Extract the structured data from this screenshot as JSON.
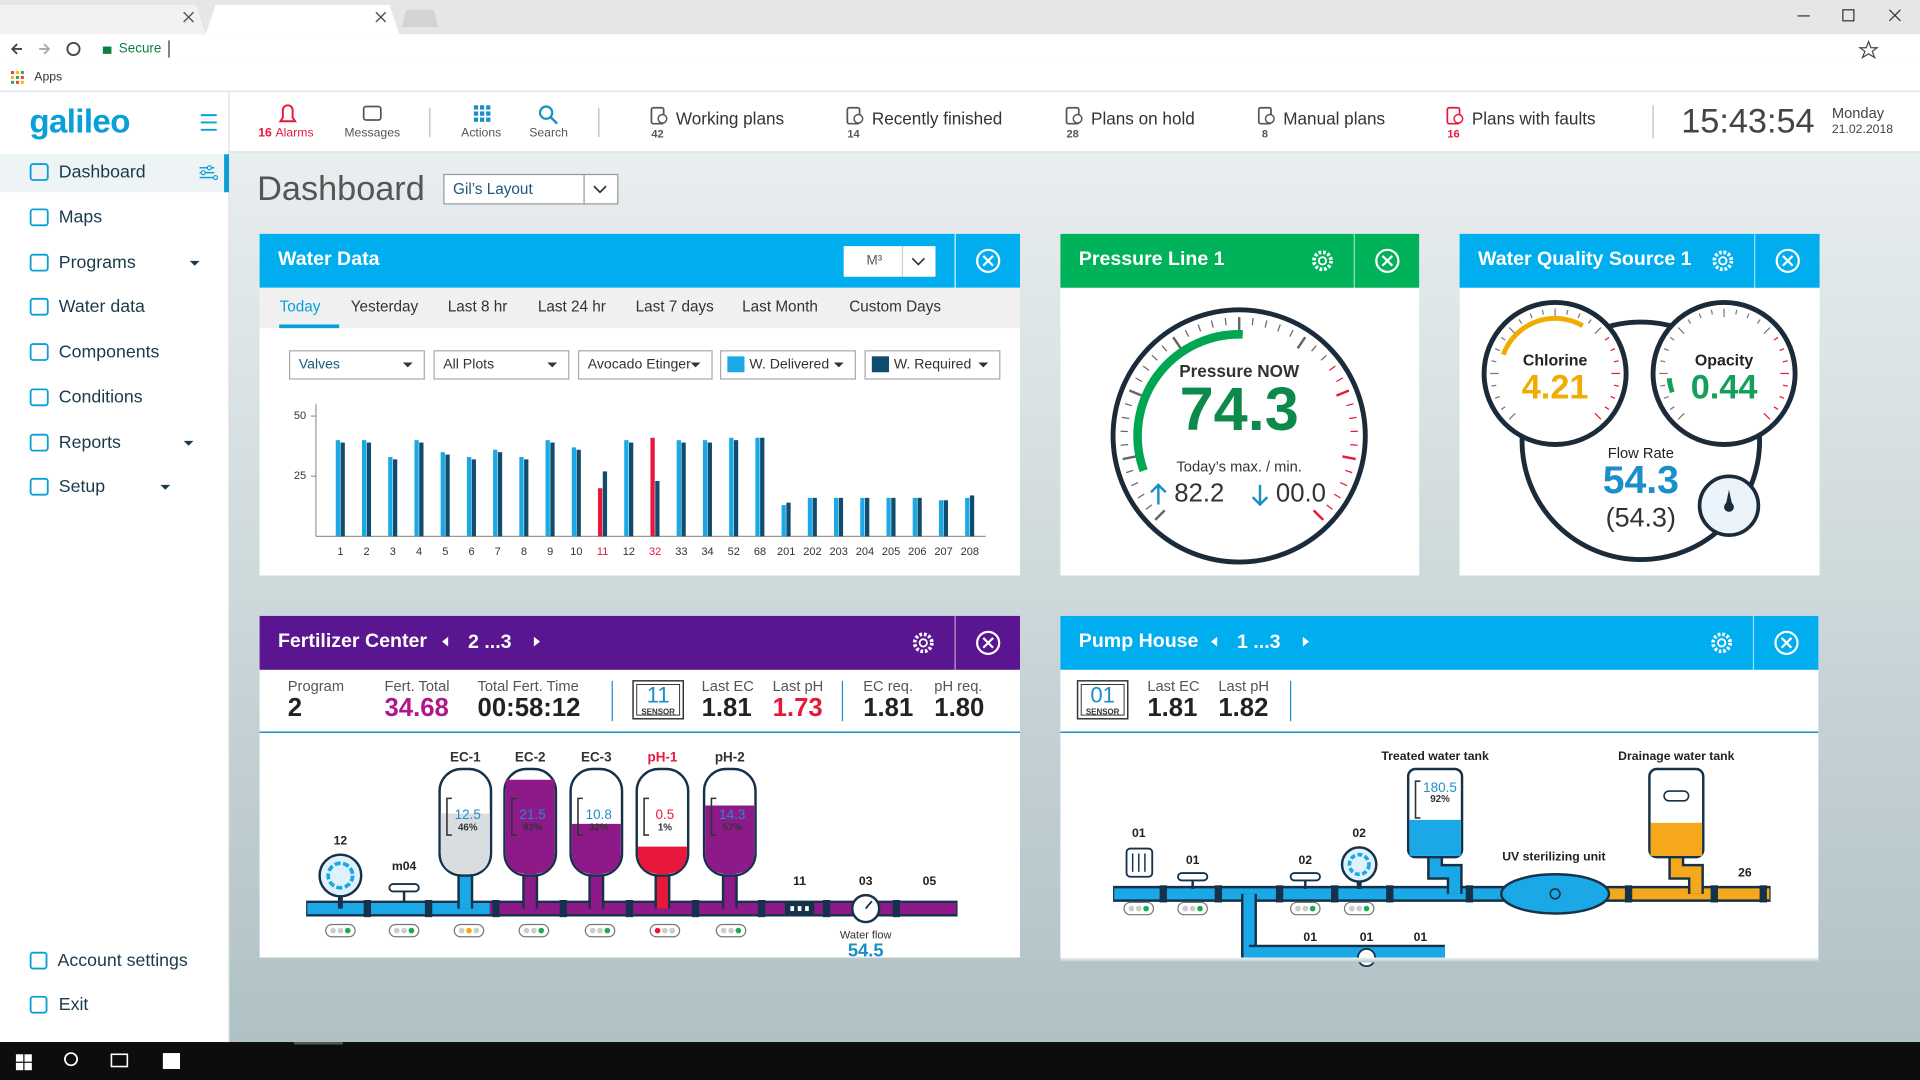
{
  "browser": {
    "secure": "Secure",
    "apps": "Apps"
  },
  "header": {
    "logo": "galileo",
    "alarms": {
      "count": "16",
      "label": "Alarms"
    },
    "messages": "Messages",
    "actions": "Actions",
    "search": "Search",
    "plans": [
      {
        "label": "Working plans",
        "count": "42"
      },
      {
        "label": "Recently finished",
        "count": "14"
      },
      {
        "label": "Plans on hold",
        "count": "28"
      },
      {
        "label": "Manual plans",
        "count": "8"
      },
      {
        "label": "Plans with faults",
        "count": "16"
      }
    ],
    "time": "15:43:54",
    "day": "Monday",
    "date": "21.02.2018"
  },
  "sidebar": {
    "items": [
      "Dashboard",
      "Maps",
      "Programs",
      "Water data",
      "Components",
      "Conditions",
      "Reports",
      "Setup"
    ],
    "footer": [
      "Account settings",
      "Exit"
    ]
  },
  "page": {
    "title": "Dashboard",
    "layout": "Gil’s Layout"
  },
  "water_data": {
    "title": "Water Data",
    "unit": "M³",
    "tabs": [
      "Today",
      "Yesterday",
      "Last 8 hr",
      "Last 24 hr",
      "Last 7 days",
      "Last Month",
      "Custom Days"
    ],
    "filters": [
      "Valves",
      "All Plots",
      "Avocado Etinger"
    ]
  },
  "chart_data": {
    "type": "bar",
    "categories": [
      "1",
      "2",
      "3",
      "4",
      "5",
      "6",
      "7",
      "8",
      "9",
      "10",
      "11",
      "12",
      "32",
      "33",
      "34",
      "52",
      "68",
      "201",
      "202",
      "203",
      "204",
      "205",
      "206",
      "207",
      "208"
    ],
    "series": [
      {
        "name": "W. Delivered",
        "color": "#1aa9e6",
        "values": [
          40,
          40,
          33,
          40,
          35,
          33,
          36,
          33,
          40,
          37,
          20,
          40,
          41,
          40,
          40,
          41,
          41,
          13,
          16,
          16,
          16,
          16,
          16,
          15,
          16
        ]
      },
      {
        "name": "W. Required",
        "color": "#0f4c6e",
        "values": [
          39,
          39,
          32,
          39,
          34,
          32,
          35,
          32,
          39,
          36,
          27,
          39,
          23,
          39,
          39,
          40,
          41,
          14,
          16,
          16,
          16,
          16,
          16,
          15,
          17
        ]
      }
    ],
    "alert_color": "#e8173c",
    "alert_points": [
      10,
      12
    ],
    "ylim": [
      0,
      55
    ],
    "yticks": [
      25,
      50
    ]
  },
  "pressure": {
    "title": "Pressure Line 1",
    "now_label": "Pressure NOW",
    "now": "74.3",
    "range_label": "Today’s max. / min.",
    "max": "82.2",
    "min": "00.0"
  },
  "water_quality": {
    "title": "Water Quality Source 1",
    "chlorine": {
      "label": "Chlorine",
      "value": "4.21"
    },
    "opacity": {
      "label": "Opacity",
      "value": "0.44"
    },
    "flow": {
      "label": "Flow Rate",
      "value": "54.3",
      "secondary": "(54.3)"
    }
  },
  "fertilizer": {
    "title": "Fertilizer Center",
    "pager": "2 ...3",
    "info": [
      {
        "label": "Program",
        "value": "2"
      },
      {
        "label": "Fert. Total",
        "value": "34.68",
        "color": "#b0168c"
      },
      {
        "label": "Total Fert. Time",
        "value": "00:58:12"
      },
      {
        "label": "Last EC",
        "value": "1.81"
      },
      {
        "label": "Last pH",
        "value": "1.73",
        "color": "#e8173c"
      },
      {
        "label": "EC req.",
        "value": "1.81"
      },
      {
        "label": "pH req.",
        "value": "1.80"
      }
    ],
    "sensor": {
      "number": "11",
      "label": "SENSOR"
    },
    "tanks": [
      {
        "name": "EC-1",
        "reading": "12.5",
        "level": 46,
        "level_label": "46%",
        "color": "#d9dde0"
      },
      {
        "name": "EC-2",
        "reading": "21.5",
        "level": 92,
        "level_label": "92%",
        "color": "#8e1a8a"
      },
      {
        "name": "EC-3",
        "reading": "10.8",
        "level": 32,
        "level_label": "32%",
        "color": "#8e1a8a"
      },
      {
        "name": "pH-1",
        "reading": "0.5",
        "level": 1,
        "level_label": "1%",
        "color": "#e8173c",
        "alert": true
      },
      {
        "name": "pH-2",
        "reading": "14.3",
        "level": 57,
        "level_label": "57%",
        "color": "#8e1a8a"
      }
    ],
    "labels": [
      "12",
      "m04",
      "11",
      "03",
      "05"
    ],
    "flow_label": "Water flow",
    "flow": "54.5"
  },
  "pump_house": {
    "title": "Pump House",
    "pager": "1 ...3",
    "sensor": {
      "number": "01",
      "label": "SENSOR"
    },
    "info": [
      {
        "label": "Last EC",
        "value": "1.81"
      },
      {
        "label": "Last pH",
        "value": "1.82"
      }
    ],
    "treated": {
      "name": "Treated water tank",
      "reading": "180.5",
      "level": 92,
      "level_label": "92%"
    },
    "drainage": {
      "name": "Drainage water tank"
    },
    "uv": "UV sterilizing unit",
    "labels": [
      "01",
      "01",
      "02",
      "02",
      "26",
      "01",
      "01",
      "01"
    ]
  }
}
